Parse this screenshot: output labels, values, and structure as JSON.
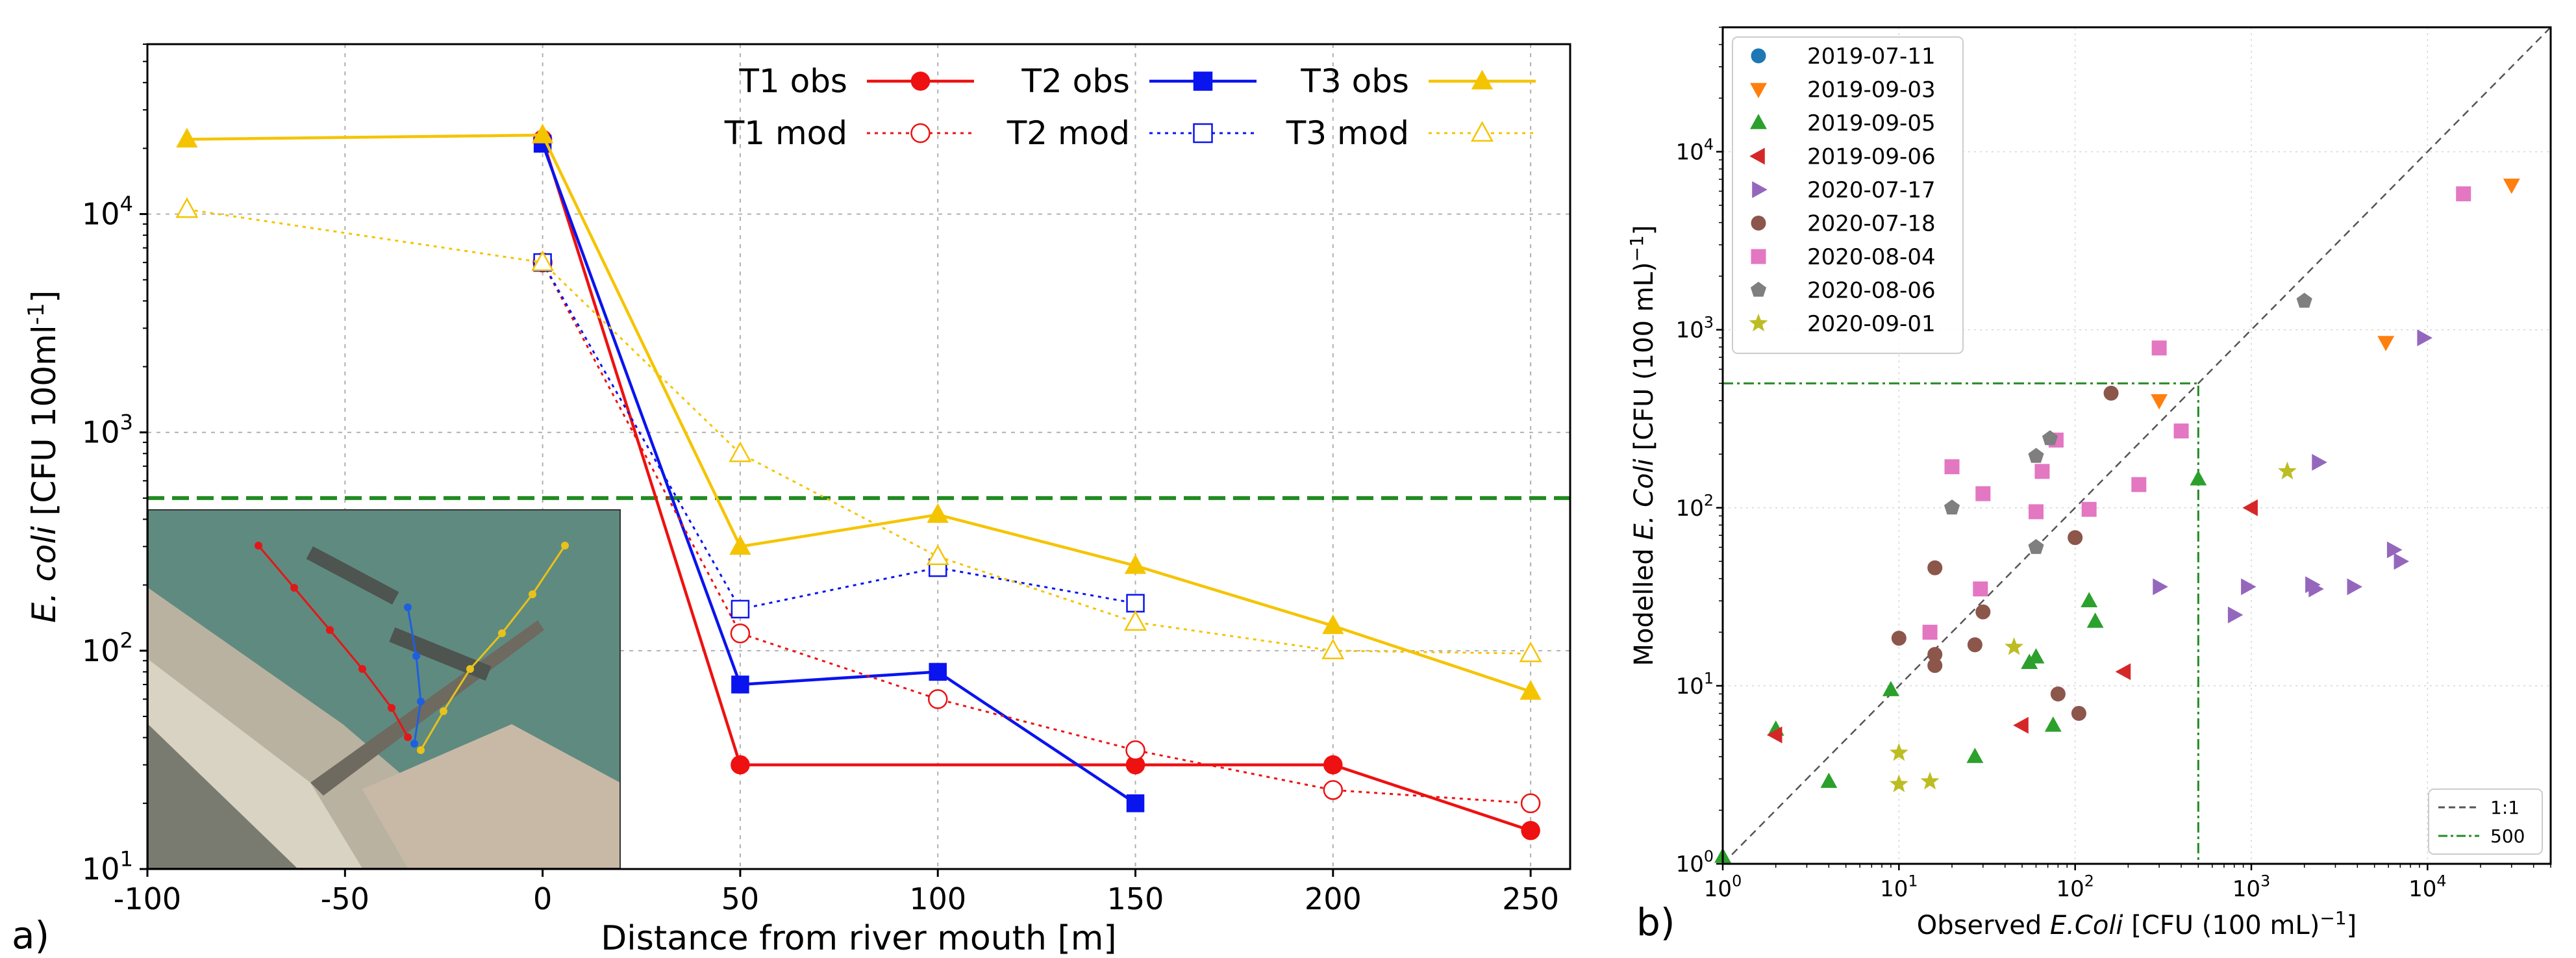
{
  "chart_data": [
    {
      "panel_label": "a)",
      "type": "line",
      "xlabel": "Distance from river mouth [m]",
      "ylabel_parts": [
        "E. coli",
        " [CFU 100ml",
        "-1",
        "]"
      ],
      "xlim": [
        -100,
        260
      ],
      "ylim": [
        10,
        60000
      ],
      "yscale": "log",
      "xticks": [
        -100,
        -50,
        0,
        50,
        100,
        150,
        200,
        250
      ],
      "xtick_labels": [
        "-100",
        "-50",
        "0",
        "50",
        "100",
        "150",
        "200",
        "250"
      ],
      "yticks": [
        {
          "value": 10,
          "base": "10",
          "exp": "1"
        },
        {
          "value": 100,
          "base": "10",
          "exp": "2"
        },
        {
          "value": 1000,
          "base": "10",
          "exp": "3"
        },
        {
          "value": 10000,
          "base": "10",
          "exp": "4"
        }
      ],
      "grid": true,
      "threshold": {
        "value": 500,
        "color": "#228B22"
      },
      "legend_position": "top",
      "inset": "aerial photo of the river mouth with the three sampling transects T1 (red), T2 (blue) and T3 (yellow)",
      "series": [
        {
          "name": "T1 obs",
          "color": "#ee1111",
          "marker": "circle",
          "filled": true,
          "dashed": false,
          "x": [
            0,
            50,
            150,
            200,
            250
          ],
          "y": [
            22000,
            30,
            30,
            30,
            15
          ]
        },
        {
          "name": "T2 obs",
          "color": "#0a14ee",
          "marker": "square",
          "filled": true,
          "dashed": false,
          "x": [
            0,
            50,
            100,
            150
          ],
          "y": [
            21000,
            70,
            80,
            20
          ]
        },
        {
          "name": "T3 obs",
          "color": "#f5c400",
          "marker": "triangle",
          "filled": true,
          "dashed": false,
          "x": [
            -90,
            0,
            50,
            100,
            150,
            200,
            250
          ],
          "y": [
            22000,
            23000,
            300,
            420,
            245,
            130,
            65
          ]
        },
        {
          "name": "T1 mod",
          "color": "#ee1111",
          "marker": "circle",
          "filled": false,
          "dashed": true,
          "x": [
            0,
            50,
            100,
            150,
            200,
            250
          ],
          "y": [
            6000,
            120,
            60,
            35,
            23,
            20
          ]
        },
        {
          "name": "T2 mod",
          "color": "#0a14ee",
          "marker": "square",
          "filled": false,
          "dashed": true,
          "x": [
            0,
            50,
            100,
            150
          ],
          "y": [
            6000,
            155,
            240,
            165
          ]
        },
        {
          "name": "T3 mod",
          "color": "#f5c400",
          "marker": "triangle",
          "filled": false,
          "dashed": true,
          "x": [
            -90,
            0,
            50,
            100,
            150,
            200,
            250
          ],
          "y": [
            10500,
            6000,
            800,
            270,
            135,
            100,
            97
          ]
        }
      ]
    },
    {
      "panel_label": "b)",
      "type": "scatter",
      "xlabel_parts": [
        "Observed ",
        "E.Coli",
        " [CFU (100 mL)",
        "−1",
        "]"
      ],
      "ylabel_parts": [
        "Modelled ",
        "E. Coli",
        " [CFU (100 mL)",
        "−1",
        "]"
      ],
      "xscale": "log",
      "yscale": "log",
      "xlim": [
        1,
        50000
      ],
      "ylim": [
        1,
        50000
      ],
      "ticks": [
        {
          "value": 1,
          "base": "10",
          "exp": "0"
        },
        {
          "value": 10,
          "base": "10",
          "exp": "1"
        },
        {
          "value": 100,
          "base": "10",
          "exp": "2"
        },
        {
          "value": 1000,
          "base": "10",
          "exp": "3"
        },
        {
          "value": 10000,
          "base": "10",
          "exp": "4"
        }
      ],
      "grid": true,
      "legend_position": "top-left",
      "ref_legend_position": "bottom-right",
      "reference_lines": [
        {
          "name": "1:1",
          "color": "#555555"
        },
        {
          "name": "500",
          "color": "#228B22",
          "value": 500
        }
      ],
      "series": [
        {
          "name": "2019-07-11",
          "color": "#1f77b4",
          "marker": "circle",
          "points": []
        },
        {
          "name": "2019-09-03",
          "color": "#ff7f0e",
          "marker": "tri_down",
          "points": [
            [
              300,
              400
            ],
            [
              5800,
              850
            ],
            [
              30000,
              6500
            ]
          ]
        },
        {
          "name": "2019-09-05",
          "color": "#2ca02c",
          "marker": "tri_up",
          "points": [
            [
              1,
              1.1
            ],
            [
              2,
              5.7
            ],
            [
              4,
              2.9
            ],
            [
              9,
              9.5
            ],
            [
              27,
              4
            ],
            [
              55,
              13.5
            ],
            [
              60,
              14.5
            ],
            [
              75,
              6
            ],
            [
              120,
              30
            ],
            [
              130,
              23
            ],
            [
              500,
              145
            ]
          ]
        },
        {
          "name": "2019-09-06",
          "color": "#d62728",
          "marker": "tri_left",
          "points": [
            [
              2,
              5.3
            ],
            [
              50,
              6
            ],
            [
              190,
              12
            ],
            [
              1000,
              100
            ]
          ]
        },
        {
          "name": "2020-07-17",
          "color": "#9467bd",
          "marker": "tri_right",
          "points": [
            [
              300,
              36
            ],
            [
              800,
              25
            ],
            [
              950,
              36
            ],
            [
              2200,
              37
            ],
            [
              2300,
              35
            ],
            [
              2400,
              180
            ],
            [
              3800,
              36
            ],
            [
              6400,
              58
            ],
            [
              7000,
              50
            ],
            [
              9500,
              900
            ]
          ]
        },
        {
          "name": "2020-07-18",
          "color": "#8c564b",
          "marker": "circle",
          "points": [
            [
              10,
              18.5
            ],
            [
              16,
              13
            ],
            [
              16,
              15
            ],
            [
              16,
              46
            ],
            [
              27,
              17
            ],
            [
              30,
              26
            ],
            [
              80,
              9
            ],
            [
              100,
              68
            ],
            [
              105,
              7
            ],
            [
              160,
              440
            ]
          ]
        },
        {
          "name": "2020-08-04",
          "color": "#e377c2",
          "marker": "square",
          "points": [
            [
              15,
              20
            ],
            [
              20,
              170
            ],
            [
              29,
              35
            ],
            [
              30,
              120
            ],
            [
              60,
              95
            ],
            [
              65,
              160
            ],
            [
              78,
              240
            ],
            [
              120,
              98
            ],
            [
              230,
              135
            ],
            [
              300,
              790
            ],
            [
              400,
              270
            ],
            [
              16000,
              5800
            ]
          ]
        },
        {
          "name": "2020-08-06",
          "color": "#7f7f7f",
          "marker": "pentagon",
          "points": [
            [
              20,
              100
            ],
            [
              60,
              60
            ],
            [
              60,
              195
            ],
            [
              72,
              245
            ],
            [
              2000,
              1450
            ]
          ]
        },
        {
          "name": "2020-09-01",
          "color": "#bcbd22",
          "marker": "star",
          "points": [
            [
              10,
              4.2
            ],
            [
              10,
              2.8
            ],
            [
              15,
              2.9
            ],
            [
              45,
              16.5
            ],
            [
              1600,
              160
            ]
          ]
        }
      ]
    }
  ]
}
